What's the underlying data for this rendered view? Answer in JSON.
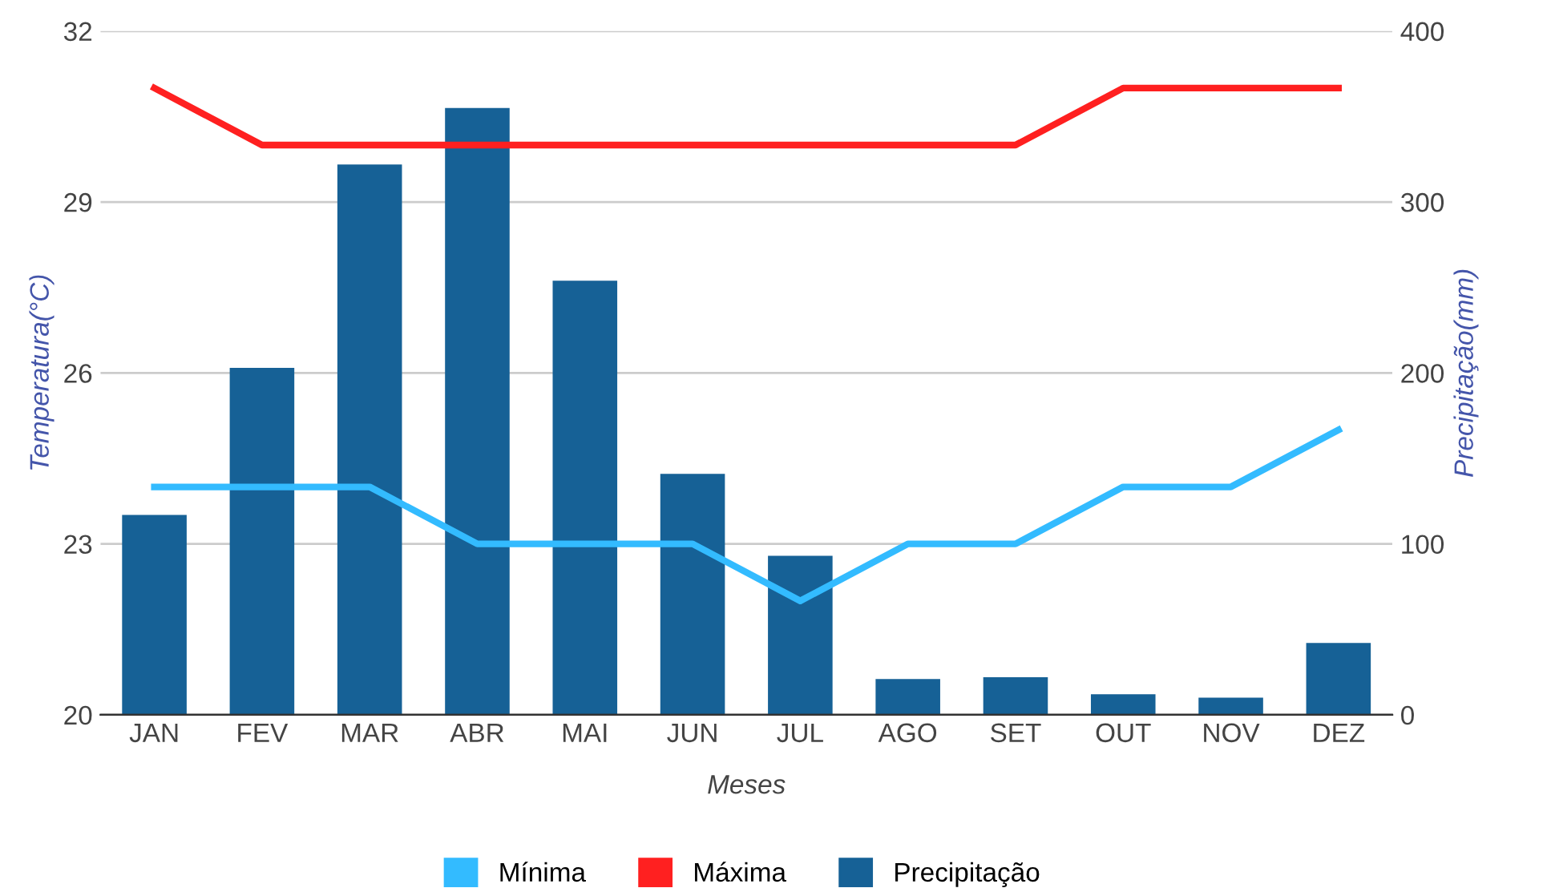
{
  "chart_data": {
    "type": "bar",
    "xlabel": "Meses",
    "ylabel": "Temperatura(°C)",
    "y2label": "Precipitação(mm)",
    "categories": [
      "JAN",
      "FEV",
      "MAR",
      "ABR",
      "MAI",
      "JUN",
      "JUL",
      "AGO",
      "SET",
      "OUT",
      "NOV",
      "DEZ"
    ],
    "series": [
      {
        "name": "Mínima",
        "type": "line",
        "color": "#33bbff",
        "values": [
          24,
          24,
          24,
          23,
          23,
          23,
          22,
          23,
          23,
          24,
          24,
          25
        ]
      },
      {
        "name": "Máxima",
        "type": "line",
        "color": "#ff2020",
        "values": [
          31,
          30,
          30,
          30,
          30,
          30,
          30,
          30,
          30,
          31,
          31,
          31
        ]
      },
      {
        "name": "Precipitação",
        "axis": "y2",
        "color": "#166196",
        "values": [
          117,
          203,
          322,
          355,
          254,
          141,
          93,
          21,
          22,
          12,
          10,
          42
        ]
      }
    ],
    "ylim": [
      20,
      32
    ],
    "yticks": [
      20,
      23,
      26,
      29,
      32
    ],
    "y2lim": [
      0,
      400
    ],
    "y2ticks": [
      0,
      100,
      200,
      300,
      400
    ],
    "grid": "y",
    "legend": "bottom"
  }
}
